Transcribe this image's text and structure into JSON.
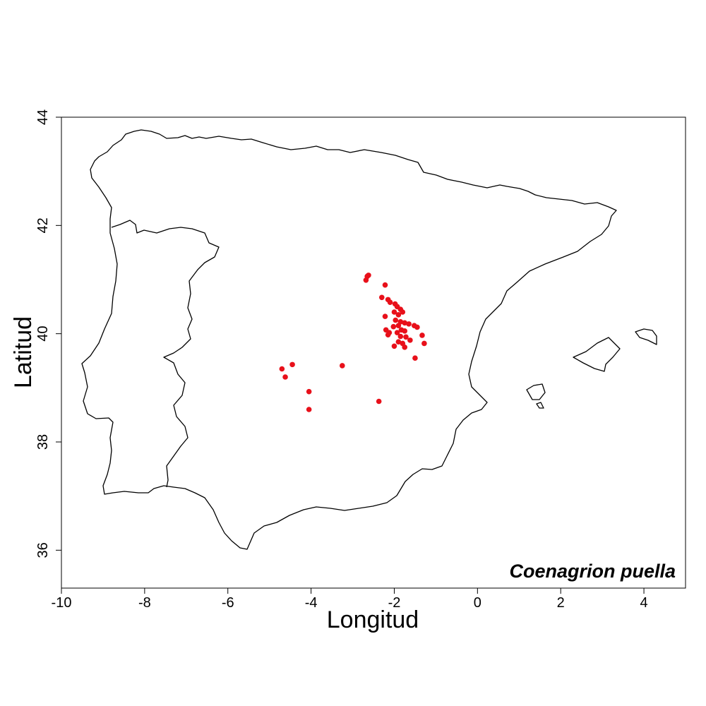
{
  "chart_data": {
    "type": "scatter",
    "title": "",
    "xlabel": "Longitud",
    "ylabel": "Latitud",
    "xlim": [
      -10,
      5
    ],
    "ylim": [
      35.3,
      44
    ],
    "xticks": [
      -10,
      -8,
      -6,
      -4,
      -2,
      0,
      2,
      4
    ],
    "yticks": [
      36,
      38,
      40,
      42,
      44
    ],
    "grid": false,
    "annotation": "Coenagrion puella",
    "point_color": "#e8101a",
    "series": [
      {
        "points": [
          [
            -2.65,
            41.06
          ],
          [
            -2.62,
            41.08
          ],
          [
            -2.68,
            40.99
          ],
          [
            -2.22,
            40.9
          ],
          [
            -2.3,
            40.67
          ],
          [
            -2.15,
            40.63
          ],
          [
            -2.1,
            40.58
          ],
          [
            -1.98,
            40.55
          ],
          [
            -1.93,
            40.5
          ],
          [
            -1.85,
            40.45
          ],
          [
            -1.8,
            40.4
          ],
          [
            -2.0,
            40.4
          ],
          [
            -1.9,
            40.35
          ],
          [
            -2.22,
            40.32
          ],
          [
            -1.97,
            40.25
          ],
          [
            -1.85,
            40.22
          ],
          [
            -1.75,
            40.2
          ],
          [
            -1.65,
            40.18
          ],
          [
            -1.9,
            40.15
          ],
          [
            -2.02,
            40.13
          ],
          [
            -1.52,
            40.15
          ],
          [
            -1.45,
            40.12
          ],
          [
            -2.2,
            40.07
          ],
          [
            -1.83,
            40.07
          ],
          [
            -1.75,
            40.05
          ],
          [
            -2.12,
            40.02
          ],
          [
            -1.93,
            40.02
          ],
          [
            -2.15,
            39.98
          ],
          [
            -1.85,
            39.95
          ],
          [
            -1.72,
            39.94
          ],
          [
            -1.33,
            39.97
          ],
          [
            -1.62,
            39.88
          ],
          [
            -1.9,
            39.85
          ],
          [
            -1.8,
            39.82
          ],
          [
            -2.0,
            39.77
          ],
          [
            -1.75,
            39.75
          ],
          [
            -1.28,
            39.82
          ],
          [
            -1.5,
            39.55
          ],
          [
            -4.7,
            39.35
          ],
          [
            -4.45,
            39.43
          ],
          [
            -4.62,
            39.2
          ],
          [
            -3.25,
            39.41
          ],
          [
            -4.05,
            38.93
          ],
          [
            -4.05,
            38.6
          ],
          [
            -2.37,
            38.75
          ]
        ]
      }
    ]
  }
}
